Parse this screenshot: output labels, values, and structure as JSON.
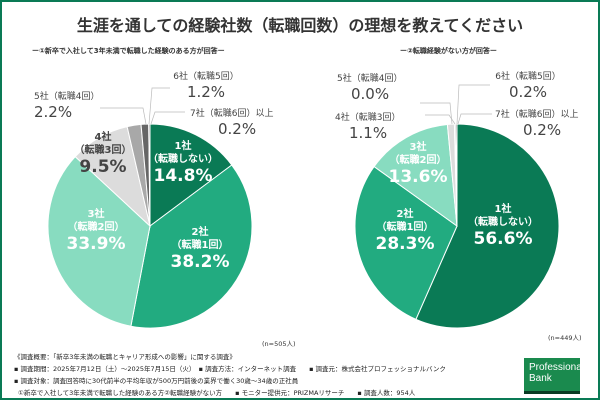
{
  "title": "生涯を通しての経験社数（転職回数）の理想を教えてください",
  "colors": {
    "border": "#0a7a55",
    "s1": "#0a7a55",
    "s2": "#22ab80",
    "s3": "#88dcc0",
    "s4": "#dcdcdc",
    "s5": "#a8a8a8",
    "s6": "#666666",
    "s7": "#333333"
  },
  "chart_data": [
    {
      "type": "pie",
      "title": "ー①新卒で入社して3年未満で転職した経験のある方が回答ー",
      "n_label": "(n=505人)",
      "slices": [
        {
          "name": "1社",
          "sub": "（転職しない）",
          "value": 14.8,
          "label": "14.8%"
        },
        {
          "name": "2社",
          "sub": "（転職1回）",
          "value": 38.2,
          "label": "38.2%"
        },
        {
          "name": "3社",
          "sub": "（転職2回）",
          "value": 33.9,
          "label": "33.9%"
        },
        {
          "name": "4社",
          "sub": "（転職3回）",
          "value": 9.5,
          "label": "9.5%"
        },
        {
          "name": "5社（転職4回）",
          "value": 2.2,
          "label": "2.2%"
        },
        {
          "name": "6社（転職5回）",
          "value": 1.2,
          "label": "1.2%"
        },
        {
          "name": "7社（転職6回）以上",
          "value": 0.2,
          "label": "0.2%"
        }
      ]
    },
    {
      "type": "pie",
      "title": "ー②転職経験がない方が回答ー",
      "n_label": "(n=449人)",
      "slices": [
        {
          "name": "1社",
          "sub": "（転職しない）",
          "value": 56.6,
          "label": "56.6%"
        },
        {
          "name": "2社",
          "sub": "（転職1回）",
          "value": 28.3,
          "label": "28.3%"
        },
        {
          "name": "3社",
          "sub": "（転職2回）",
          "value": 13.6,
          "label": "13.6%"
        },
        {
          "name": "4社（転職3回）",
          "value": 1.1,
          "label": "1.1%"
        },
        {
          "name": "5社（転職4回）",
          "value": 0.0,
          "label": "0.0%"
        },
        {
          "name": "6社（転職5回）",
          "value": 0.2,
          "label": "0.2%"
        },
        {
          "name": "7社（転職6回）以上",
          "value": 0.2,
          "label": "0.2%"
        }
      ]
    }
  ],
  "footer": {
    "line1": "《調査概要：「新卒3年未満の転職とキャリア形成への影響」に関する調査》",
    "line2": "▪ 調査期間：2025年7月12日（土）～2025年7月15日（火）　▪ 調査方法：インターネット調査　　▪ 調査元：株式会社プロフェッショナルバンク",
    "line3": "▪ 調査対象：調査回答時に30代前半の平均年収が500万円前後の業界で働く30歳～34歳の正社員",
    "line4": "①新卒で入社して3年未満で転職した経験のある方②転職経験がない方　　▪ モニター提供元：PRIZMAリサーチ　　▪ 調査人数：954人"
  },
  "logo": "Professional Bank"
}
